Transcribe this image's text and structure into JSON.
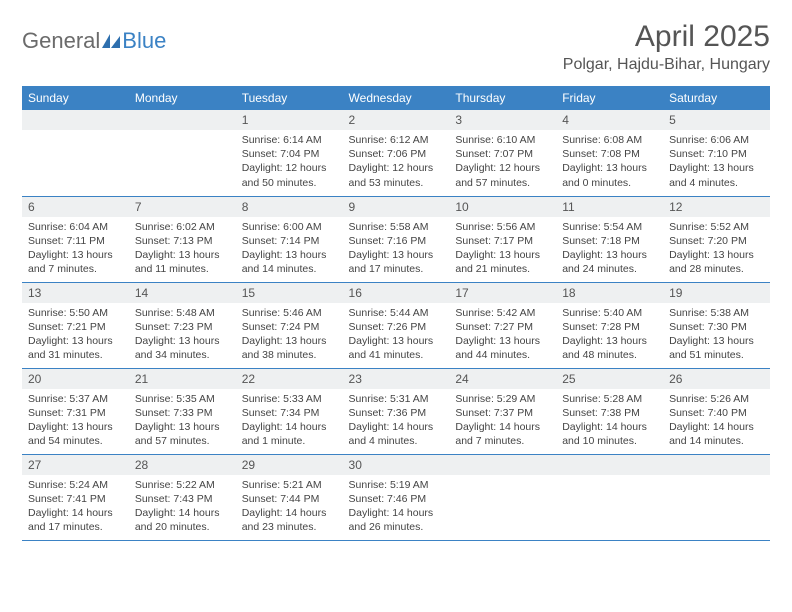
{
  "logo": {
    "part1": "General",
    "part2": "Blue"
  },
  "title": "April 2025",
  "location": "Polgar, Hajdu-Bihar, Hungary",
  "header_bg": "#3b82c4",
  "header_text": "#ffffff",
  "daynum_bg": "#eef0f1",
  "border_color": "#3b82c4",
  "dayNames": [
    "Sunday",
    "Monday",
    "Tuesday",
    "Wednesday",
    "Thursday",
    "Friday",
    "Saturday"
  ],
  "weeks": [
    [
      null,
      null,
      {
        "n": "1",
        "sr": "6:14 AM",
        "ss": "7:04 PM",
        "dl": "12 hours and 50 minutes."
      },
      {
        "n": "2",
        "sr": "6:12 AM",
        "ss": "7:06 PM",
        "dl": "12 hours and 53 minutes."
      },
      {
        "n": "3",
        "sr": "6:10 AM",
        "ss": "7:07 PM",
        "dl": "12 hours and 57 minutes."
      },
      {
        "n": "4",
        "sr": "6:08 AM",
        "ss": "7:08 PM",
        "dl": "13 hours and 0 minutes."
      },
      {
        "n": "5",
        "sr": "6:06 AM",
        "ss": "7:10 PM",
        "dl": "13 hours and 4 minutes."
      }
    ],
    [
      {
        "n": "6",
        "sr": "6:04 AM",
        "ss": "7:11 PM",
        "dl": "13 hours and 7 minutes."
      },
      {
        "n": "7",
        "sr": "6:02 AM",
        "ss": "7:13 PM",
        "dl": "13 hours and 11 minutes."
      },
      {
        "n": "8",
        "sr": "6:00 AM",
        "ss": "7:14 PM",
        "dl": "13 hours and 14 minutes."
      },
      {
        "n": "9",
        "sr": "5:58 AM",
        "ss": "7:16 PM",
        "dl": "13 hours and 17 minutes."
      },
      {
        "n": "10",
        "sr": "5:56 AM",
        "ss": "7:17 PM",
        "dl": "13 hours and 21 minutes."
      },
      {
        "n": "11",
        "sr": "5:54 AM",
        "ss": "7:18 PM",
        "dl": "13 hours and 24 minutes."
      },
      {
        "n": "12",
        "sr": "5:52 AM",
        "ss": "7:20 PM",
        "dl": "13 hours and 28 minutes."
      }
    ],
    [
      {
        "n": "13",
        "sr": "5:50 AM",
        "ss": "7:21 PM",
        "dl": "13 hours and 31 minutes."
      },
      {
        "n": "14",
        "sr": "5:48 AM",
        "ss": "7:23 PM",
        "dl": "13 hours and 34 minutes."
      },
      {
        "n": "15",
        "sr": "5:46 AM",
        "ss": "7:24 PM",
        "dl": "13 hours and 38 minutes."
      },
      {
        "n": "16",
        "sr": "5:44 AM",
        "ss": "7:26 PM",
        "dl": "13 hours and 41 minutes."
      },
      {
        "n": "17",
        "sr": "5:42 AM",
        "ss": "7:27 PM",
        "dl": "13 hours and 44 minutes."
      },
      {
        "n": "18",
        "sr": "5:40 AM",
        "ss": "7:28 PM",
        "dl": "13 hours and 48 minutes."
      },
      {
        "n": "19",
        "sr": "5:38 AM",
        "ss": "7:30 PM",
        "dl": "13 hours and 51 minutes."
      }
    ],
    [
      {
        "n": "20",
        "sr": "5:37 AM",
        "ss": "7:31 PM",
        "dl": "13 hours and 54 minutes."
      },
      {
        "n": "21",
        "sr": "5:35 AM",
        "ss": "7:33 PM",
        "dl": "13 hours and 57 minutes."
      },
      {
        "n": "22",
        "sr": "5:33 AM",
        "ss": "7:34 PM",
        "dl": "14 hours and 1 minute."
      },
      {
        "n": "23",
        "sr": "5:31 AM",
        "ss": "7:36 PM",
        "dl": "14 hours and 4 minutes."
      },
      {
        "n": "24",
        "sr": "5:29 AM",
        "ss": "7:37 PM",
        "dl": "14 hours and 7 minutes."
      },
      {
        "n": "25",
        "sr": "5:28 AM",
        "ss": "7:38 PM",
        "dl": "14 hours and 10 minutes."
      },
      {
        "n": "26",
        "sr": "5:26 AM",
        "ss": "7:40 PM",
        "dl": "14 hours and 14 minutes."
      }
    ],
    [
      {
        "n": "27",
        "sr": "5:24 AM",
        "ss": "7:41 PM",
        "dl": "14 hours and 17 minutes."
      },
      {
        "n": "28",
        "sr": "5:22 AM",
        "ss": "7:43 PM",
        "dl": "14 hours and 20 minutes."
      },
      {
        "n": "29",
        "sr": "5:21 AM",
        "ss": "7:44 PM",
        "dl": "14 hours and 23 minutes."
      },
      {
        "n": "30",
        "sr": "5:19 AM",
        "ss": "7:46 PM",
        "dl": "14 hours and 26 minutes."
      },
      null,
      null,
      null
    ]
  ],
  "labels": {
    "sunrise": "Sunrise: ",
    "sunset": "Sunset: ",
    "daylight": "Daylight: "
  }
}
